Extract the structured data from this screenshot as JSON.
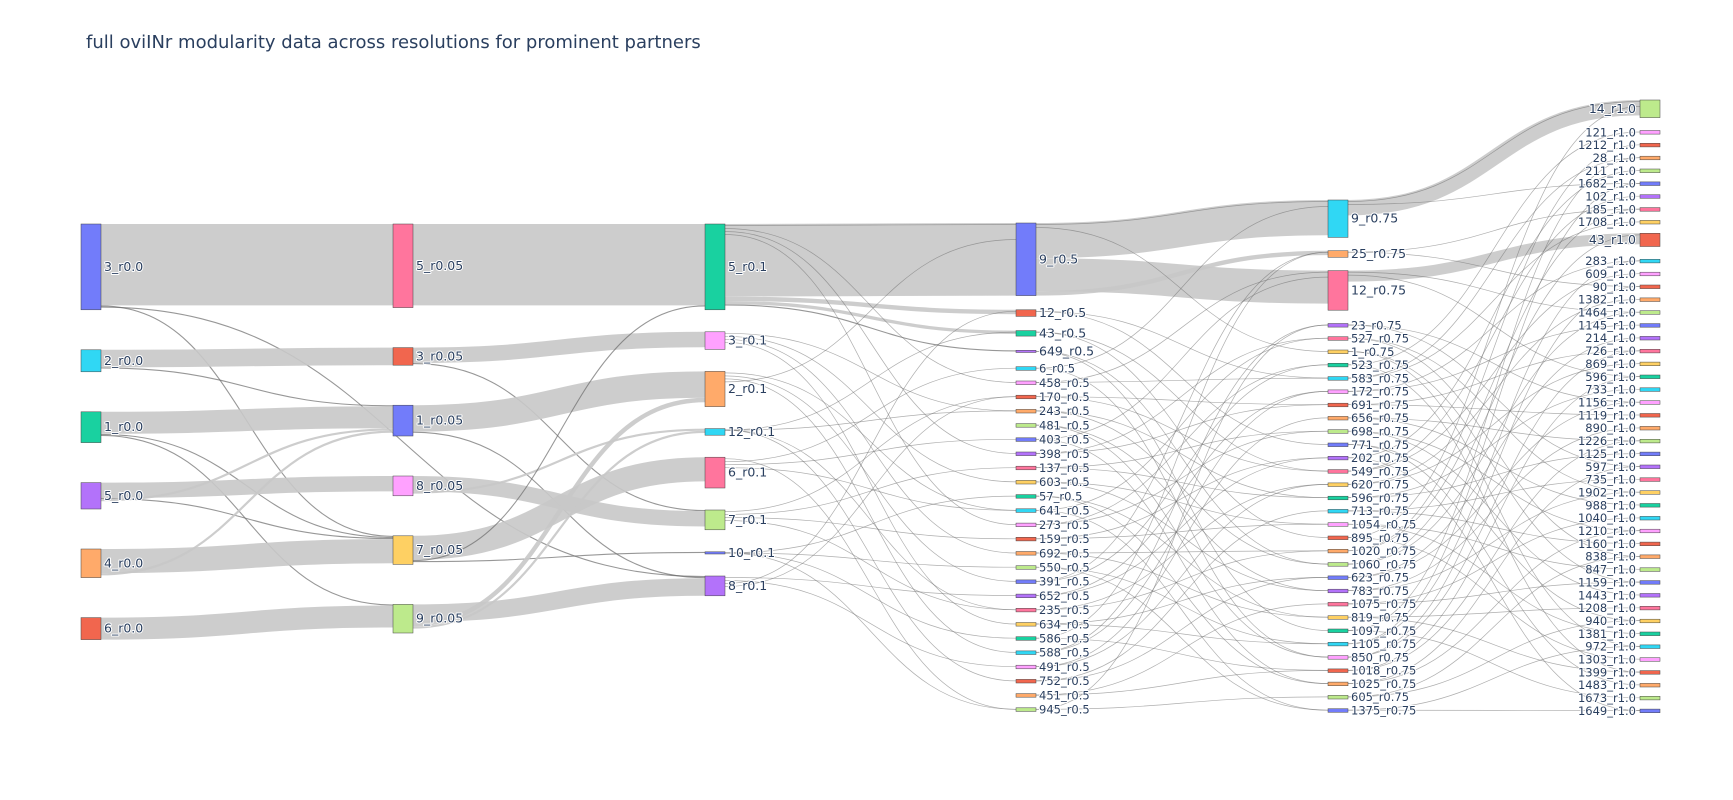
{
  "title": "full oviINr modularity data across resolutions for prominent partners",
  "colors": {
    "link": "#c8c8c8",
    "thin_link": "#6b6b6b",
    "palette": [
      "#636efa",
      "#ef553b",
      "#00cc96",
      "#ab63fa",
      "#ffa15a",
      "#19d3f3",
      "#ff6692",
      "#b6e880",
      "#ff97ff",
      "#fecb52"
    ]
  },
  "chart_data": {
    "type": "sankey",
    "title": "full oviINr modularity data across resolutions for prominent partners",
    "columns": [
      {
        "resolution": "r0.0",
        "nodes": [
          {
            "label": "3_r0.0",
            "color": "#636efa",
            "weight": 78
          },
          {
            "label": "2_r0.0",
            "color": "#19d3f3",
            "weight": 20
          },
          {
            "label": "1_r0.0",
            "color": "#00cc96",
            "weight": 28
          },
          {
            "label": "5_r0.0",
            "color": "#ab63fa",
            "weight": 24
          },
          {
            "label": "4_r0.0",
            "color": "#ffa15a",
            "weight": 26
          },
          {
            "label": "6_r0.0",
            "color": "#ef553b",
            "weight": 20
          }
        ]
      },
      {
        "resolution": "r0.05",
        "nodes": [
          {
            "label": "5_r0.05",
            "color": "#ff6692",
            "weight": 76
          },
          {
            "label": "3_r0.05",
            "color": "#ef553b",
            "weight": 16
          },
          {
            "label": "1_r0.05",
            "color": "#636efa",
            "weight": 28
          },
          {
            "label": "8_r0.05",
            "color": "#ff97ff",
            "weight": 18
          },
          {
            "label": "7_r0.05",
            "color": "#fecb52",
            "weight": 26
          },
          {
            "label": "9_r0.05",
            "color": "#b6e880",
            "weight": 26
          }
        ]
      },
      {
        "resolution": "r0.1",
        "nodes": [
          {
            "label": "5_r0.1",
            "color": "#00cc96",
            "weight": 78
          },
          {
            "label": "3_r0.1",
            "color": "#ff97ff",
            "weight": 16
          },
          {
            "label": "2_r0.1",
            "color": "#ffa15a",
            "weight": 32
          },
          {
            "label": "12_r0.1",
            "color": "#19d3f3",
            "weight": 6
          },
          {
            "label": "6_r0.1",
            "color": "#ff6692",
            "weight": 28
          },
          {
            "label": "7_r0.1",
            "color": "#b6e880",
            "weight": 18
          },
          {
            "label": "10_r0.1",
            "color": "#636efa",
            "weight": 2
          },
          {
            "label": "8_r0.1",
            "color": "#ab63fa",
            "weight": 18
          }
        ]
      },
      {
        "resolution": "r0.5",
        "nodes": [
          {
            "label": "9_r0.5",
            "color": "#636efa",
            "weight": 66
          },
          {
            "label": "12_r0.5",
            "color": "#ef553b",
            "weight": 6
          },
          {
            "label": "43_r0.5",
            "color": "#00cc96",
            "weight": 5
          },
          {
            "label": "649_r0.5",
            "color": "#ab63fa",
            "weight": 2
          },
          {
            "label": "6_r0.5"
          },
          {
            "label": "458_r0.5"
          },
          {
            "label": "170_r0.5"
          },
          {
            "label": "243_r0.5"
          },
          {
            "label": "481_r0.5"
          },
          {
            "label": "403_r0.5"
          },
          {
            "label": "398_r0.5"
          },
          {
            "label": "137_r0.5"
          },
          {
            "label": "603_r0.5"
          },
          {
            "label": "57_r0.5"
          },
          {
            "label": "641_r0.5"
          },
          {
            "label": "273_r0.5"
          },
          {
            "label": "159_r0.5"
          },
          {
            "label": "692_r0.5"
          },
          {
            "label": "550_r0.5"
          },
          {
            "label": "391_r0.5"
          },
          {
            "label": "652_r0.5"
          },
          {
            "label": "235_r0.5"
          },
          {
            "label": "634_r0.5"
          },
          {
            "label": "586_r0.5"
          },
          {
            "label": "588_r0.5"
          },
          {
            "label": "491_r0.5"
          },
          {
            "label": "752_r0.5"
          },
          {
            "label": "451_r0.5"
          },
          {
            "label": "945_r0.5"
          }
        ]
      },
      {
        "resolution": "r0.75",
        "nodes": [
          {
            "label": "9_r0.75",
            "color": "#19d3f3",
            "weight": 34
          },
          {
            "label": "25_r0.75",
            "color": "#ffa15a",
            "weight": 6
          },
          {
            "label": "12_r0.75",
            "color": "#ff6692",
            "weight": 36
          },
          {
            "label": "23_r0.75"
          },
          {
            "label": "527_r0.75"
          },
          {
            "label": "1_r0.75"
          },
          {
            "label": "523_r0.75"
          },
          {
            "label": "583_r0.75"
          },
          {
            "label": "172_r0.75"
          },
          {
            "label": "691_r0.75"
          },
          {
            "label": "656_r0.75"
          },
          {
            "label": "698_r0.75"
          },
          {
            "label": "771_r0.75"
          },
          {
            "label": "202_r0.75"
          },
          {
            "label": "549_r0.75"
          },
          {
            "label": "620_r0.75"
          },
          {
            "label": "596_r0.75"
          },
          {
            "label": "713_r0.75"
          },
          {
            "label": "1054_r0.75"
          },
          {
            "label": "895_r0.75"
          },
          {
            "label": "1020_r0.75"
          },
          {
            "label": "1060_r0.75"
          },
          {
            "label": "623_r0.75"
          },
          {
            "label": "783_r0.75"
          },
          {
            "label": "1075_r0.75"
          },
          {
            "label": "819_r0.75"
          },
          {
            "label": "1097_r0.75"
          },
          {
            "label": "1105_r0.75"
          },
          {
            "label": "850_r0.75"
          },
          {
            "label": "1018_r0.75"
          },
          {
            "label": "1025_r0.75"
          },
          {
            "label": "605_r0.75"
          },
          {
            "label": "1375_r0.75"
          }
        ]
      },
      {
        "resolution": "r1.0",
        "nodes": [
          {
            "label": "14_r1.0",
            "color": "#b6e880",
            "weight": 16
          },
          {
            "label": "121_r1.0"
          },
          {
            "label": "1212_r1.0"
          },
          {
            "label": "28_r1.0"
          },
          {
            "label": "211_r1.0"
          },
          {
            "label": "1682_r1.0"
          },
          {
            "label": "102_r1.0"
          },
          {
            "label": "185_r1.0"
          },
          {
            "label": "1708_r1.0"
          },
          {
            "label": "43_r1.0",
            "color": "#ef553b",
            "weight": 12
          },
          {
            "label": "283_r1.0"
          },
          {
            "label": "609_r1.0"
          },
          {
            "label": "90_r1.0"
          },
          {
            "label": "1382_r1.0"
          },
          {
            "label": "1464_r1.0"
          },
          {
            "label": "1145_r1.0"
          },
          {
            "label": "214_r1.0"
          },
          {
            "label": "726_r1.0"
          },
          {
            "label": "869_r1.0"
          },
          {
            "label": "596_r1.0"
          },
          {
            "label": "733_r1.0"
          },
          {
            "label": "1156_r1.0"
          },
          {
            "label": "1119_r1.0"
          },
          {
            "label": "890_r1.0"
          },
          {
            "label": "1226_r1.0"
          },
          {
            "label": "1125_r1.0"
          },
          {
            "label": "597_r1.0"
          },
          {
            "label": "735_r1.0"
          },
          {
            "label": "1902_r1.0"
          },
          {
            "label": "988_r1.0"
          },
          {
            "label": "1040_r1.0"
          },
          {
            "label": "1210_r1.0"
          },
          {
            "label": "1160_r1.0"
          },
          {
            "label": "838_r1.0"
          },
          {
            "label": "847_r1.0"
          },
          {
            "label": "1159_r1.0"
          },
          {
            "label": "1443_r1.0"
          },
          {
            "label": "1208_r1.0"
          },
          {
            "label": "940_r1.0"
          },
          {
            "label": "1381_r1.0"
          },
          {
            "label": "972_r1.0"
          },
          {
            "label": "1303_r1.0"
          },
          {
            "label": "1399_r1.0"
          },
          {
            "label": "1483_r1.0"
          },
          {
            "label": "1673_r1.0"
          },
          {
            "label": "1649_r1.0"
          }
        ]
      }
    ],
    "links": [
      {
        "source": "3_r0.0",
        "target": "5_r0.05",
        "value": 74
      },
      {
        "source": "3_r0.0",
        "target": "7_r0.05",
        "value": 1
      },
      {
        "source": "3_r0.0",
        "target": "8_r0.1",
        "value": 1
      },
      {
        "source": "2_r0.0",
        "target": "3_r0.05",
        "value": 16
      },
      {
        "source": "2_r0.0",
        "target": "1_r0.05",
        "value": 1
      },
      {
        "source": "1_r0.0",
        "target": "1_r0.05",
        "value": 20
      },
      {
        "source": "1_r0.0",
        "target": "7_r0.05",
        "value": 1
      },
      {
        "source": "1_r0.0",
        "target": "9_r0.05",
        "value": 1
      },
      {
        "source": "5_r0.0",
        "target": "8_r0.05",
        "value": 14
      },
      {
        "source": "5_r0.0",
        "target": "7_r0.05",
        "value": 1
      },
      {
        "source": "5_r0.0",
        "target": "1_r0.05",
        "value": 2
      },
      {
        "source": "4_r0.0",
        "target": "7_r0.05",
        "value": 22
      },
      {
        "source": "4_r0.0",
        "target": "1_r0.05",
        "value": 2
      },
      {
        "source": "6_r0.0",
        "target": "9_r0.05",
        "value": 20
      },
      {
        "source": "5_r0.05",
        "target": "5_r0.1",
        "value": 74
      },
      {
        "source": "3_r0.05",
        "target": "3_r0.1",
        "value": 14
      },
      {
        "source": "3_r0.05",
        "target": "7_r0.1",
        "value": 1
      },
      {
        "source": "1_r0.05",
        "target": "2_r0.1",
        "value": 24
      },
      {
        "source": "1_r0.05",
        "target": "8_r0.1",
        "value": 1
      },
      {
        "source": "8_r0.05",
        "target": "7_r0.1",
        "value": 14
      },
      {
        "source": "8_r0.05",
        "target": "12_r0.1",
        "value": 2
      },
      {
        "source": "7_r0.05",
        "target": "6_r0.1",
        "value": 22
      },
      {
        "source": "7_r0.05",
        "target": "5_r0.1",
        "value": 1
      },
      {
        "source": "7_r0.05",
        "target": "10_r0.1",
        "value": 1
      },
      {
        "source": "9_r0.05",
        "target": "8_r0.1",
        "value": 16
      },
      {
        "source": "9_r0.05",
        "target": "2_r0.1",
        "value": 4
      },
      {
        "source": "9_r0.05",
        "target": "12_r0.1",
        "value": 2
      },
      {
        "source": "5_r0.1",
        "target": "9_r0.5",
        "value": 66
      },
      {
        "source": "5_r0.1",
        "target": "12_r0.5",
        "value": 4
      },
      {
        "source": "5_r0.1",
        "target": "43_r0.5",
        "value": 3
      },
      {
        "source": "5_r0.1",
        "target": "649_r0.5",
        "value": 1
      },
      {
        "source": "9_r0.5",
        "target": "9_r0.75",
        "value": 32
      },
      {
        "source": "9_r0.5",
        "target": "12_r0.75",
        "value": 30
      },
      {
        "source": "9_r0.5",
        "target": "25_r0.75",
        "value": 4
      },
      {
        "source": "9_r0.75",
        "target": "14_r1.0",
        "value": 14
      },
      {
        "source": "12_r0.75",
        "target": "43_r1.0",
        "value": 10
      }
    ]
  }
}
